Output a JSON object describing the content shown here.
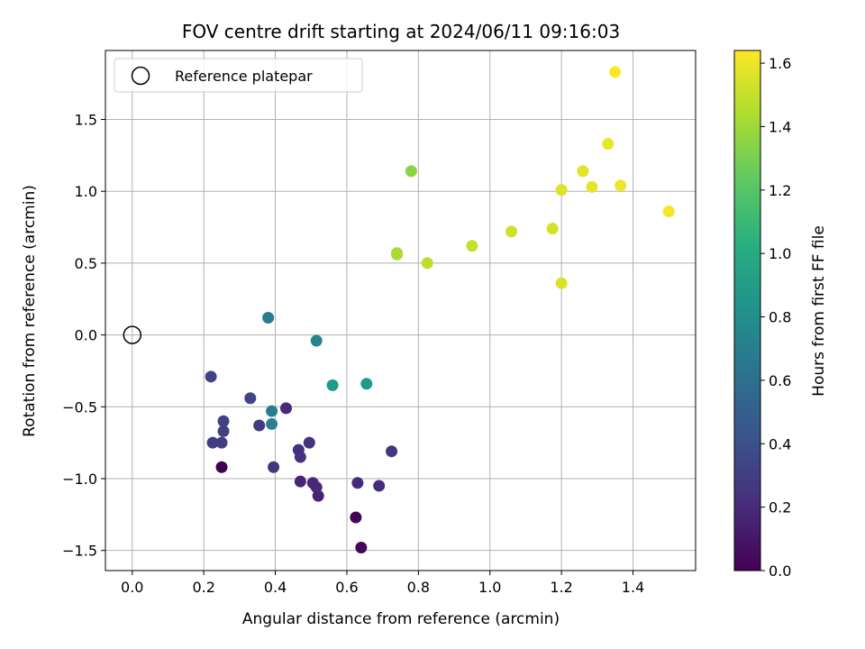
{
  "chart_data": {
    "type": "scatter",
    "title": "FOV centre drift starting at 2024/06/11 09:16:03",
    "xlabel": "Angular distance from reference (arcmin)",
    "ylabel": "Rotation from reference (arcmin)",
    "xlim": [
      -0.075,
      1.575
    ],
    "ylim": [
      -1.64,
      1.98
    ],
    "x_ticks": [
      0.0,
      0.2,
      0.4,
      0.6,
      0.8,
      1.0,
      1.2,
      1.4
    ],
    "x_tick_labels": [
      "0.0",
      "0.2",
      "0.4",
      "0.6",
      "0.8",
      "1.0",
      "1.2",
      "1.4"
    ],
    "y_ticks": [
      -1.5,
      -1.0,
      -0.5,
      0.0,
      0.5,
      1.0,
      1.5
    ],
    "y_tick_labels": [
      "−1.5",
      "−1.0",
      "−0.5",
      "0.0",
      "0.5",
      "1.0",
      "1.5"
    ],
    "grid": true,
    "legend": {
      "placement": "top-left",
      "entries": [
        {
          "label": "Reference platepar",
          "marker": "open-circle"
        }
      ]
    },
    "reference_point": {
      "x": 0.0,
      "y": 0.0
    },
    "colorbar": {
      "label": "Hours from first FF file",
      "colormap": "viridis",
      "range": [
        0.0,
        1.64
      ],
      "ticks": [
        0.0,
        0.2,
        0.4,
        0.6,
        0.8,
        1.0,
        1.2,
        1.4,
        1.6
      ],
      "tick_labels": [
        "0.0",
        "0.2",
        "0.4",
        "0.6",
        "0.8",
        "1.0",
        "1.2",
        "1.4",
        "1.6"
      ]
    },
    "points": [
      {
        "x": 0.25,
        "y": -0.92,
        "c": 0.0
      },
      {
        "x": 0.625,
        "y": -1.27,
        "c": 0.02
      },
      {
        "x": 0.64,
        "y": -1.48,
        "c": 0.03
      },
      {
        "x": 0.52,
        "y": -1.12,
        "c": 0.16
      },
      {
        "x": 0.47,
        "y": -1.02,
        "c": 0.17
      },
      {
        "x": 0.505,
        "y": -1.03,
        "c": 0.18
      },
      {
        "x": 0.515,
        "y": -1.06,
        "c": 0.19
      },
      {
        "x": 0.63,
        "y": -1.03,
        "c": 0.2
      },
      {
        "x": 0.69,
        "y": -1.05,
        "c": 0.21
      },
      {
        "x": 0.465,
        "y": -0.8,
        "c": 0.22
      },
      {
        "x": 0.47,
        "y": -0.85,
        "c": 0.23
      },
      {
        "x": 0.495,
        "y": -0.75,
        "c": 0.24
      },
      {
        "x": 0.43,
        "y": -0.51,
        "c": 0.19
      },
      {
        "x": 0.725,
        "y": -0.81,
        "c": 0.26
      },
      {
        "x": 0.395,
        "y": -0.92,
        "c": 0.27
      },
      {
        "x": 0.355,
        "y": -0.63,
        "c": 0.28
      },
      {
        "x": 0.225,
        "y": -0.75,
        "c": 0.29
      },
      {
        "x": 0.25,
        "y": -0.75,
        "c": 0.3
      },
      {
        "x": 0.255,
        "y": -0.67,
        "c": 0.31
      },
      {
        "x": 0.255,
        "y": -0.6,
        "c": 0.32
      },
      {
        "x": 0.22,
        "y": -0.29,
        "c": 0.33
      },
      {
        "x": 0.33,
        "y": -0.44,
        "c": 0.34
      },
      {
        "x": 0.39,
        "y": -0.53,
        "c": 0.7
      },
      {
        "x": 0.39,
        "y": -0.62,
        "c": 0.72
      },
      {
        "x": 0.38,
        "y": 0.12,
        "c": 0.68
      },
      {
        "x": 0.515,
        "y": -0.04,
        "c": 0.74
      },
      {
        "x": 0.56,
        "y": -0.35,
        "c": 0.9
      },
      {
        "x": 0.655,
        "y": -0.34,
        "c": 0.9
      },
      {
        "x": 0.78,
        "y": 1.14,
        "c": 1.35
      },
      {
        "x": 0.74,
        "y": 0.57,
        "c": 1.42
      },
      {
        "x": 0.74,
        "y": 0.56,
        "c": 1.43
      },
      {
        "x": 0.825,
        "y": 0.5,
        "c": 1.48
      },
      {
        "x": 0.95,
        "y": 0.62,
        "c": 1.5
      },
      {
        "x": 1.06,
        "y": 0.72,
        "c": 1.52
      },
      {
        "x": 1.175,
        "y": 0.74,
        "c": 1.53
      },
      {
        "x": 1.2,
        "y": 0.36,
        "c": 1.55
      },
      {
        "x": 1.2,
        "y": 1.01,
        "c": 1.56
      },
      {
        "x": 1.26,
        "y": 1.14,
        "c": 1.57
      },
      {
        "x": 1.285,
        "y": 1.03,
        "c": 1.58
      },
      {
        "x": 1.33,
        "y": 1.33,
        "c": 1.59
      },
      {
        "x": 1.365,
        "y": 1.04,
        "c": 1.6
      },
      {
        "x": 1.5,
        "y": 0.86,
        "c": 1.62
      },
      {
        "x": 1.35,
        "y": 1.83,
        "c": 1.64
      }
    ]
  }
}
